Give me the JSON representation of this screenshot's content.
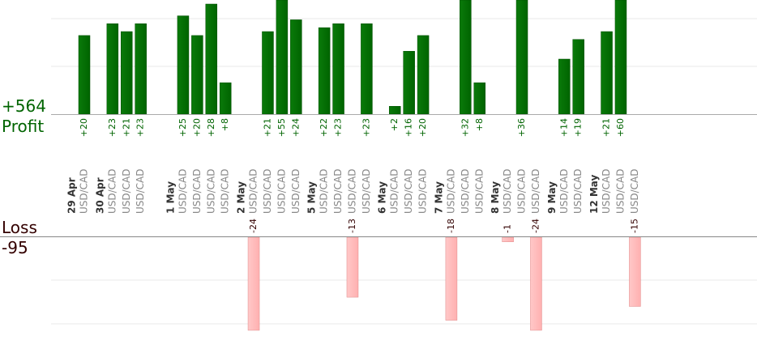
{
  "chart_data": {
    "type": "bar",
    "summary": {
      "profit_total": "+564",
      "profit_label": "Profit",
      "loss_label": "Loss",
      "loss_total": "-95"
    },
    "colors": {
      "profit": "#006400",
      "profit_text": "#006400",
      "loss": "#ffb0b0",
      "loss_text": "#330000",
      "date_text": "#333333",
      "symbol_text": "#888888",
      "grid": "#e8e8e8",
      "axis": "#aaaaaa"
    },
    "profit_axis_max": 28,
    "loss_axis_max": 20,
    "grid": true,
    "trades": [
      {
        "date": "29 Apr",
        "symbol": "USD/CAD",
        "value": 20
      },
      {
        "date": "",
        "symbol": "",
        "value": null
      },
      {
        "date": "30 Apr",
        "symbol": "USD/CAD",
        "value": 23
      },
      {
        "date": "",
        "symbol": "USD/CAD",
        "value": 21
      },
      {
        "date": "",
        "symbol": "USD/CAD",
        "value": 23
      },
      {
        "date": "",
        "symbol": "",
        "value": null
      },
      {
        "date": "",
        "symbol": "",
        "value": null
      },
      {
        "date": "1 May",
        "symbol": "USD/CAD",
        "value": 25
      },
      {
        "date": "",
        "symbol": "USD/CAD",
        "value": 20
      },
      {
        "date": "",
        "symbol": "USD/CAD",
        "value": 28
      },
      {
        "date": "",
        "symbol": "USD/CAD",
        "value": 8
      },
      {
        "date": "",
        "symbol": "",
        "value": null
      },
      {
        "date": "2 May",
        "symbol": "USD/CAD",
        "value": -24
      },
      {
        "date": "",
        "symbol": "USD/CAD",
        "value": 21
      },
      {
        "date": "",
        "symbol": "USD/CAD",
        "value": 55
      },
      {
        "date": "",
        "symbol": "USD/CAD",
        "value": 24
      },
      {
        "date": "",
        "symbol": "",
        "value": null
      },
      {
        "date": "5 May",
        "symbol": "USD/CAD",
        "value": 22
      },
      {
        "date": "",
        "symbol": "USD/CAD",
        "value": 23
      },
      {
        "date": "",
        "symbol": "USD/CAD",
        "value": -13
      },
      {
        "date": "",
        "symbol": "USD/CAD",
        "value": 23
      },
      {
        "date": "",
        "symbol": "",
        "value": null
      },
      {
        "date": "6 May",
        "symbol": "USD/CAD",
        "value": 2
      },
      {
        "date": "",
        "symbol": "USD/CAD",
        "value": 16
      },
      {
        "date": "",
        "symbol": "USD/CAD",
        "value": 20
      },
      {
        "date": "",
        "symbol": "",
        "value": null
      },
      {
        "date": "7 May",
        "symbol": "USD/CAD",
        "value": -18
      },
      {
        "date": "",
        "symbol": "USD/CAD",
        "value": 32
      },
      {
        "date": "",
        "symbol": "USD/CAD",
        "value": 8
      },
      {
        "date": "",
        "symbol": "",
        "value": null
      },
      {
        "date": "8 May",
        "symbol": "USD/CAD",
        "value": -1
      },
      {
        "date": "",
        "symbol": "USD/CAD",
        "value": 36
      },
      {
        "date": "",
        "symbol": "USD/CAD",
        "value": -24
      },
      {
        "date": "",
        "symbol": "",
        "value": null
      },
      {
        "date": "9 May",
        "symbol": "USD/CAD",
        "value": 14
      },
      {
        "date": "",
        "symbol": "USD/CAD",
        "value": 19
      },
      {
        "date": "",
        "symbol": "",
        "value": null
      },
      {
        "date": "12 May",
        "symbol": "USD/CAD",
        "value": 21
      },
      {
        "date": "",
        "symbol": "USD/CAD",
        "value": 60
      },
      {
        "date": "",
        "symbol": "USD/CAD",
        "value": -15
      }
    ]
  }
}
